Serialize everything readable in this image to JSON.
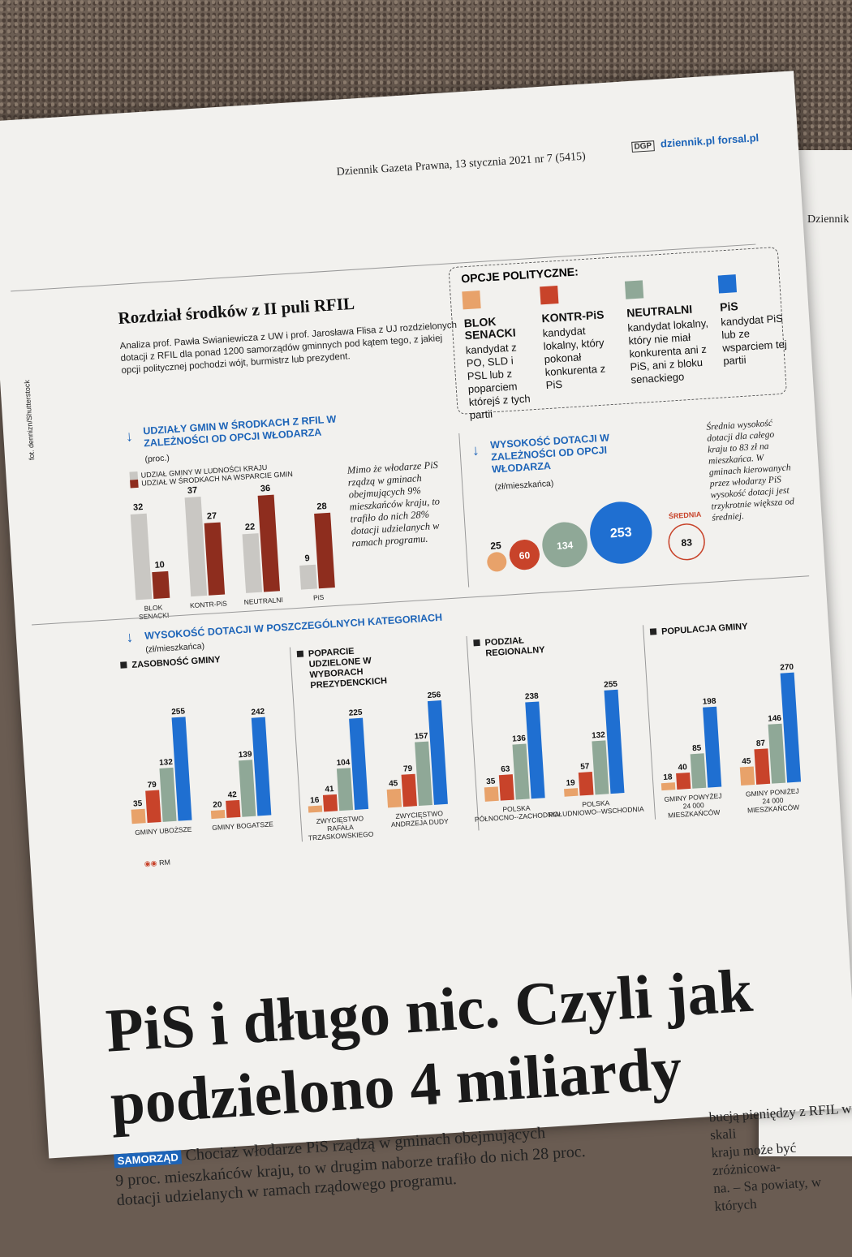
{
  "page": {
    "masthead": "Dziennik Gazeta Prawna, 13 stycznia 2021 nr 7 (5415)",
    "logo": "DGP",
    "urls": "dziennik.pl forsal.pl",
    "photo_credit": "fot. dennizn/Shutterstock",
    "right_page_header": "Dziennik"
  },
  "infographic": {
    "title": "Rozdział środków z II puli RFIL",
    "intro": "Analiza prof. Pawła Swianiewicza z UW i prof. Jarosława Flisa z UJ rozdzielonych dotacji z RFIL dla ponad 1200 samorządów gminnych pod kątem tego, z jakiej opcji politycznej pochodzi wójt, burmistrz lub prezydent.",
    "legend_title": "OPCJE POLITYCZNE:",
    "options": [
      {
        "name": "BLOK SENACKI",
        "desc": "kandydat z PO, SLD i PSL lub z poparciem którejś z tych partii",
        "color": "#e8a26a"
      },
      {
        "name": "KONTR-PiS",
        "desc": "kandydat lokalny, który pokonał konkurenta z PiS",
        "color": "#c8432a"
      },
      {
        "name": "NEUTRALNI",
        "desc": "kandydat lokalny, który nie miał konkurenta ani z PiS, ani z bloku senackiego",
        "color": "#8fa897"
      },
      {
        "name": "PiS",
        "desc": "kandydat PiS lub ze wsparciem tej partii",
        "color": "#1f6fd1"
      }
    ],
    "shares": {
      "heading": "UDZIAŁY GMIN W ŚRODKACH Z RFIL W ZALEŻNOŚCI OD OPCJI WŁODARZA",
      "unit": "(proc.)",
      "legend_a": "UDZIAŁ GMINY W LUDNOŚCI KRAJU",
      "legend_b": "UDZIAŁ W ŚRODKACH NA WSPARCIE GMIN",
      "note": "Mimo że włodarze PiS rządzą w gminach obejmujących 9% mieszkańców kraju, to trafiło do nich 28% dotacji udzielanych w ramach programu."
    },
    "dotation": {
      "heading": "WYSOKOŚĆ DOTACJI W ZALEŻNOŚCI OD OPCJI WŁODARZA",
      "unit": "(zł/mieszkańca)",
      "avg_label": "ŚREDNIA",
      "note": "Średnia wysokość dotacji dla całego kraju to 83 zł na mieszkańca. W gminach kierowanych przez włodarzy PiS wysokość dotacji jest trzykrotnie większa od średniej."
    },
    "categories": {
      "heading": "WYSOKOŚĆ DOTACJI W POSZCZEGÓLNYCH KATEGORIACH",
      "unit": "(zł/mieszkańca)",
      "credit": "RM"
    }
  },
  "chart_data": [
    {
      "type": "bar",
      "title": "UDZIAŁY GMIN W ŚRODKACH Z RFIL W ZALEŻNOŚCI OD OPCJI WŁODARZA",
      "categories": [
        "BLOK SENACKI",
        "KONTR-PiS",
        "NEUTRALNI",
        "PiS"
      ],
      "series": [
        {
          "name": "UDZIAŁ GMINY W LUDNOŚCI KRAJU",
          "values": [
            32,
            37,
            22,
            9
          ],
          "color": "#c9c7c3"
        },
        {
          "name": "UDZIAŁ W ŚRODKACH NA WSPARCIE GMIN",
          "values": [
            10,
            27,
            36,
            28
          ],
          "color": "#8e2d1e"
        }
      ],
      "ylim": [
        0,
        40
      ]
    },
    {
      "type": "bubble",
      "title": "WYSOKOŚĆ DOTACJI W ZALEŻNOŚCI OD OPCJI WŁODARZA",
      "categories": [
        "BLOK SENACKI",
        "KONTR-PiS",
        "NEUTRALNI",
        "PiS",
        "ŚREDNIA"
      ],
      "values": [
        25,
        60,
        134,
        253,
        83
      ]
    },
    {
      "type": "bar",
      "title": "WYSOKOŚĆ DOTACJI W POSZCZEGÓLNYCH KATEGORIACH",
      "panels": [
        {
          "name": "ZASOBNOŚĆ GMINY",
          "groups": [
            {
              "label": "GMINY UBOŻSZE",
              "values": [
                35,
                79,
                132,
                255
              ]
            },
            {
              "label": "GMINY BOGATSZE",
              "values": [
                20,
                42,
                139,
                242
              ]
            }
          ]
        },
        {
          "name": "POPARCIE UDZIELONE W WYBORACH PREZYDENCKICH",
          "groups": [
            {
              "label": "ZWYCIĘSTWO RAFAŁA TRZASKOWSKIEGO",
              "values": [
                16,
                41,
                104,
                225
              ]
            },
            {
              "label": "ZWYCIĘSTWO ANDRZEJA DUDY",
              "values": [
                45,
                79,
                157,
                256
              ]
            }
          ]
        },
        {
          "name": "PODZIAŁ REGIONALNY",
          "groups": [
            {
              "label": "POLSKA PÓŁNOCNO--ZACHODNIA",
              "values": [
                35,
                63,
                136,
                238
              ]
            },
            {
              "label": "POLSKA POŁUDNIOWO--WSCHODNIA",
              "values": [
                19,
                57,
                132,
                255
              ]
            }
          ]
        },
        {
          "name": "POPULACJA GMINY",
          "groups": [
            {
              "label": "GMINY POWYŻEJ 24 000 MIESZKAŃCÓW",
              "values": [
                18,
                40,
                85,
                198
              ]
            },
            {
              "label": "GMINY PONIŻEJ 24 000 MIESZKAŃCÓW",
              "values": [
                45,
                87,
                146,
                270
              ]
            }
          ]
        }
      ],
      "series": [
        "BLOK SENACKI",
        "KONTR-PiS",
        "NEUTRALNI",
        "PiS"
      ]
    }
  ],
  "article": {
    "headline_1": "PiS i długo nic. Czyli jak",
    "headline_2": "podzielono 4 miliardy",
    "tag": "SAMORZĄD",
    "lead_1": "Chociaż włodarze PiS rządzą w gminach obejmujących",
    "lead_2": "9 proc. mieszkańców kraju, to w drugim naborze trafiło do nich 28 proc.",
    "lead_3": "dotacji udzielanych w ramach rządowego programu.",
    "side_1": "bucją pieniędzy z RFIL w skali",
    "side_2": "kraju może być zróżnicowa-",
    "side_3": "na. – Sa powiaty, w których"
  }
}
